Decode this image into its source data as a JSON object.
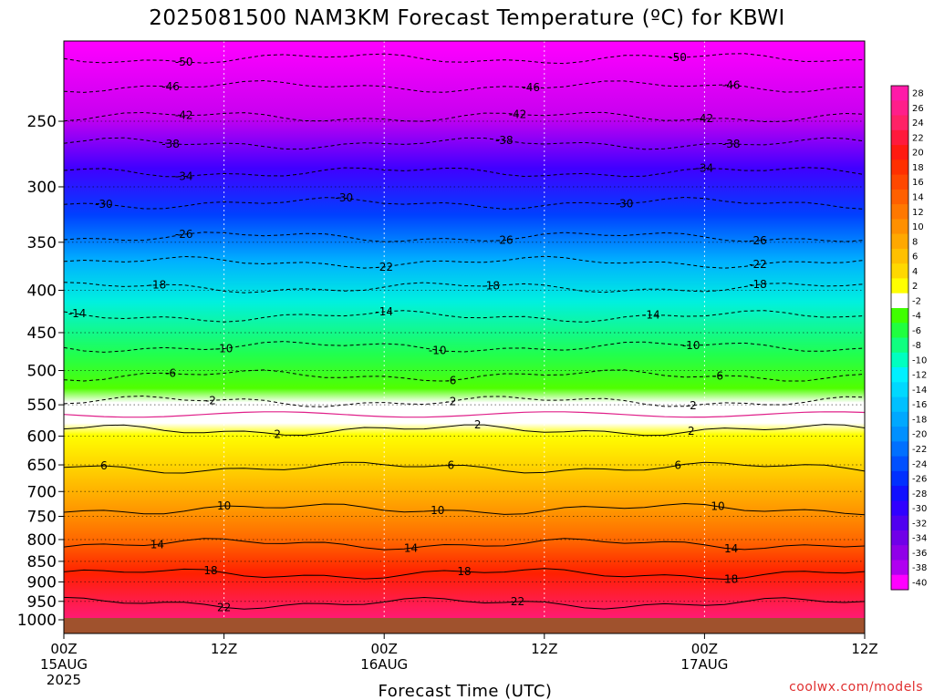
{
  "chart_data": {
    "type": "heatmap",
    "title": "2025081500 NAM3KM Forecast Temperature (ºC) for KBWI",
    "xlabel": "Forecast Time (UTC)",
    "credit": "coolwx.com/models",
    "x_ticks": [
      {
        "hour": 0,
        "lines": [
          "00Z",
          "15AUG",
          "2025"
        ]
      },
      {
        "hour": 12,
        "lines": [
          "12Z"
        ]
      },
      {
        "hour": 24,
        "lines": [
          "00Z",
          "16AUG"
        ]
      },
      {
        "hour": 36,
        "lines": [
          "12Z"
        ]
      },
      {
        "hour": 48,
        "lines": [
          "00Z",
          "17AUG"
        ]
      },
      {
        "hour": 60,
        "lines": [
          "12Z"
        ]
      }
    ],
    "xlim": [
      0,
      60
    ],
    "y_ticks": [
      250,
      300,
      350,
      400,
      450,
      500,
      550,
      600,
      650,
      700,
      750,
      800,
      850,
      900,
      950,
      1000
    ],
    "ylim_hpa": [
      200,
      1000
    ],
    "y_scale": "log-pressure (inverted)",
    "colorbar_labels": [
      "28",
      "26",
      "24",
      "22",
      "20",
      "18",
      "16",
      "14",
      "12",
      "10",
      "8",
      "6",
      "4",
      "2",
      "-2",
      "-4",
      "-6",
      "-8",
      "-10",
      "-12",
      "-14",
      "-16",
      "-18",
      "-20",
      "-22",
      "-24",
      "-26",
      "-28",
      "-30",
      "-32",
      "-34",
      "-36",
      "-38",
      "-40"
    ],
    "colorbar_colors": [
      "#ff1aa8",
      "#ff1f8a",
      "#ff2266",
      "#ff1a3c",
      "#ff1a10",
      "#ff3000",
      "#ff4800",
      "#ff6000",
      "#ff7800",
      "#ff9000",
      "#ffa800",
      "#ffc000",
      "#ffd800",
      "#ffff00",
      "#ffffff",
      "#40ff00",
      "#20ff40",
      "#10ff80",
      "#00ffc0",
      "#00f0ff",
      "#00d8ff",
      "#00c0ff",
      "#00a8ff",
      "#0090ff",
      "#0070ff",
      "#0050ff",
      "#0030ff",
      "#1010ff",
      "#3000ff",
      "#5000f0",
      "#7000e8",
      "#9000e8",
      "#b000f0",
      "#ff00ff"
    ],
    "isotherms": [
      {
        "value": "-50",
        "p": 210,
        "label_hours": [
          9,
          46
        ]
      },
      {
        "value": "-46",
        "p": 227,
        "label_hours": [
          8,
          35,
          50
        ]
      },
      {
        "value": "-42",
        "p": 247,
        "label_hours": [
          9,
          34,
          48
        ]
      },
      {
        "value": "-38",
        "p": 266,
        "label_hours": [
          8,
          33,
          50
        ]
      },
      {
        "value": "-34",
        "p": 288,
        "label_hours": [
          9,
          48
        ]
      },
      {
        "value": "-30",
        "p": 314,
        "label_hours": [
          3,
          21,
          42
        ]
      },
      {
        "value": "-26",
        "p": 345,
        "label_hours": [
          9,
          33,
          52
        ]
      },
      {
        "value": "-22",
        "p": 370,
        "label_hours": [
          24,
          52
        ]
      },
      {
        "value": "-18",
        "p": 397,
        "label_hours": [
          7,
          32,
          52
        ]
      },
      {
        "value": "-14",
        "p": 430,
        "label_hours": [
          1,
          24,
          44
        ]
      },
      {
        "value": "-10",
        "p": 468,
        "label_hours": [
          12,
          28,
          47
        ]
      },
      {
        "value": "-6",
        "p": 507,
        "label_hours": [
          8,
          29,
          49
        ]
      },
      {
        "value": "-2",
        "p": 545,
        "label_hours": [
          11,
          29,
          47
        ]
      },
      {
        "value": "2",
        "p": 590,
        "label_hours": [
          16,
          31,
          47
        ]
      },
      {
        "value": "6",
        "p": 655,
        "label_hours": [
          3,
          29,
          46
        ]
      },
      {
        "value": "10",
        "p": 735,
        "label_hours": [
          12,
          28,
          49
        ]
      },
      {
        "value": "14",
        "p": 810,
        "label_hours": [
          7,
          26,
          50
        ]
      },
      {
        "value": "18",
        "p": 880,
        "label_hours": [
          11,
          30,
          50
        ]
      },
      {
        "value": "22",
        "p": 955,
        "label_hours": [
          12,
          34
        ]
      }
    ],
    "freezing_level_hpa": 565,
    "ground_pressure_hpa": 1012
  }
}
